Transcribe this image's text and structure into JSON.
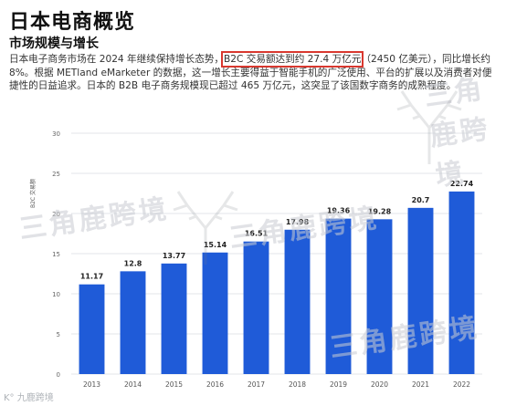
{
  "article": {
    "title": "日本电商概览",
    "section_heading": "市场规模与增长",
    "paragraph_before": "日本电子商务市场在 2024 年继续保持增长态势，",
    "paragraph_highlight": "B2C 交易额达到约 27.4 万亿元",
    "paragraph_after": "（2450 亿美元），同比增长约 8%。根据 METland eMarketer 的数据，这一增长主要得益于智能手机的广泛使用、平台的扩展以及消费者对便捷性的日益追求。日本的 B2B 电子商务规模现已超过 465 万亿元，这突显了该国数字商务的成熟程度。"
  },
  "watermark": {
    "text": "三角鹿跨境",
    "source_tag": "K° 九鹿跨境"
  },
  "colors": {
    "bar": "#1f5bd8",
    "highlight_box": "#d9382f",
    "grid": "#e3e6ea"
  },
  "chart_data": {
    "type": "bar",
    "categories": [
      "2013",
      "2014",
      "2015",
      "2016",
      "2017",
      "2018",
      "2019",
      "2020",
      "2021",
      "2022"
    ],
    "values": [
      11.17,
      12.8,
      13.77,
      15.14,
      16.51,
      17.98,
      19.36,
      19.28,
      20.7,
      22.74
    ],
    "value_labels": [
      "11.17",
      "12.8",
      "13.77",
      "15.14",
      "16.51",
      "17.98",
      "19.36",
      "19.28",
      "20.7",
      "22.74"
    ],
    "yticks": [
      0,
      5,
      10,
      15,
      20,
      25,
      30
    ],
    "ylim": [
      0,
      30
    ],
    "ylabel": "B2C 交易额",
    "grid": true
  }
}
